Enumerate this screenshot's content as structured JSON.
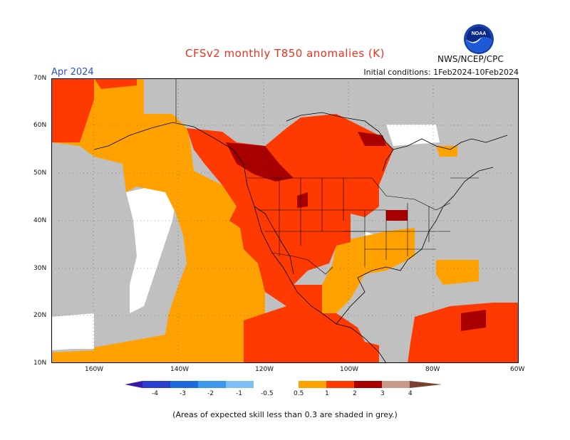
{
  "header": {
    "title": "CFSv2 monthly T850 anomalies (K)",
    "month": "Apr 2024",
    "agency": "NWS/NCEP/CPC",
    "initial_conditions": "Initial conditions: 1Feb2024-10Feb2024",
    "logo_text": "NOAA"
  },
  "map": {
    "latitude_labels": [
      "70N",
      "60N",
      "50N",
      "40N",
      "30N",
      "20N",
      "10N"
    ],
    "longitude_labels": [
      "160W",
      "140W",
      "120W",
      "100W",
      "80W",
      "60W"
    ],
    "region": "North America",
    "gridlines": "dotted",
    "background_grey_meaning": "skill < 0.3"
  },
  "colorbar": {
    "labels": [
      "-4",
      "-3",
      "-2",
      "-1",
      "-0.5",
      "0.5",
      "1",
      "2",
      "3",
      "4"
    ],
    "colors": {
      "lt_-4": "#3a1aa8",
      "-4_-3": "#2a3fd0",
      "-3_-2": "#1e6ad9",
      "-2_-1": "#3c98ea",
      "-1_-0.5": "#7ec0f5",
      "neutral": "#ffffff",
      "0.5_1": "#ffa200",
      "1_2": "#ff3a00",
      "2_3": "#a80000",
      "3_4": "#c89a8a",
      "gt_4": "#7a4030"
    }
  },
  "footer": {
    "note": "(Areas of expected skill less than 0.3 are shaded in grey.)"
  },
  "colors": {
    "grey": "#c0c0c0",
    "orange": "#ffa200",
    "red": "#ff3a00",
    "dark_red": "#a80000",
    "title_red": "#e8321e",
    "month_blue": "#2a4fd6"
  }
}
